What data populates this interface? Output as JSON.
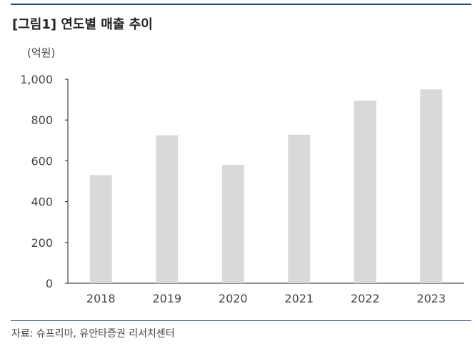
{
  "header": {
    "title": "[그림1] 연도별 매출 추이"
  },
  "chart_data": {
    "type": "bar",
    "title": "[그림1] 연도별 매출 추이",
    "unit_label": "(억원)",
    "categories": [
      "2018",
      "2019",
      "2020",
      "2021",
      "2022",
      "2023"
    ],
    "values": [
      530,
      725,
      580,
      728,
      895,
      950
    ],
    "ylim": [
      0,
      1000
    ],
    "yticks": [
      0,
      200,
      400,
      600,
      800,
      1000
    ],
    "ytick_labels": [
      "0",
      "200",
      "400",
      "600",
      "800",
      "1,000"
    ],
    "bar_color": "#d9d9d9",
    "grid": false,
    "legend": "none"
  },
  "footer": {
    "source": "자료: 슈프리마, 유안타증권 리서치센터"
  },
  "colors": {
    "rule": "#1f4e79",
    "bar": "#d9d9d9"
  }
}
